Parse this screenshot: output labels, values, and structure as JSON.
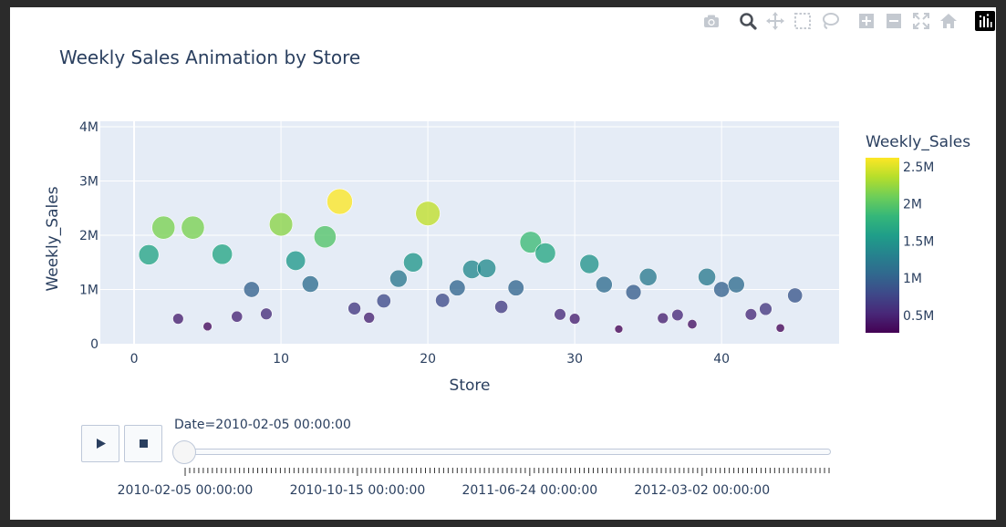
{
  "modebar": {
    "icons": [
      "camera-icon",
      "zoom-icon",
      "pan-icon",
      "box-select-icon",
      "lasso-icon",
      "zoom-in-icon",
      "zoom-out-icon",
      "autoscale-icon",
      "home-icon",
      "plotly-logo-icon"
    ]
  },
  "chart_data": {
    "type": "scatter",
    "title": "Weekly Sales Animation by Store",
    "xlabel": "Store",
    "ylabel": "Weekly_Sales",
    "xlim": [
      -2.3,
      48
    ],
    "ylim": [
      0,
      4100000
    ],
    "x_ticks": [
      0,
      10,
      20,
      30,
      40
    ],
    "y_ticks": [
      0,
      1000000,
      2000000,
      3000000,
      4000000
    ],
    "y_tick_labels": [
      "0",
      "1M",
      "2M",
      "3M",
      "4M"
    ],
    "grid": true,
    "size_encodes": "Weekly_Sales",
    "color_encodes": "Weekly_Sales",
    "colorscale": "Viridis",
    "colorbar": {
      "title": "Weekly_Sales",
      "range": [
        268000,
        2620000
      ],
      "ticks": [
        500000,
        1000000,
        1500000,
        2000000,
        2500000
      ],
      "tick_labels": [
        "0.5M",
        "1M",
        "1.5M",
        "2M",
        "2.5M"
      ]
    },
    "points": [
      {
        "x": 1,
        "y": 1640000
      },
      {
        "x": 2,
        "y": 2140000
      },
      {
        "x": 3,
        "y": 460000
      },
      {
        "x": 4,
        "y": 2140000
      },
      {
        "x": 5,
        "y": 320000
      },
      {
        "x": 6,
        "y": 1650000
      },
      {
        "x": 7,
        "y": 500000
      },
      {
        "x": 8,
        "y": 1000000
      },
      {
        "x": 9,
        "y": 550000
      },
      {
        "x": 10,
        "y": 2200000
      },
      {
        "x": 11,
        "y": 1530000
      },
      {
        "x": 12,
        "y": 1100000
      },
      {
        "x": 13,
        "y": 1970000
      },
      {
        "x": 14,
        "y": 2620000
      },
      {
        "x": 15,
        "y": 650000
      },
      {
        "x": 16,
        "y": 480000
      },
      {
        "x": 17,
        "y": 790000
      },
      {
        "x": 18,
        "y": 1200000
      },
      {
        "x": 19,
        "y": 1500000
      },
      {
        "x": 20,
        "y": 2400000
      },
      {
        "x": 21,
        "y": 800000
      },
      {
        "x": 22,
        "y": 1030000
      },
      {
        "x": 23,
        "y": 1370000
      },
      {
        "x": 24,
        "y": 1390000
      },
      {
        "x": 25,
        "y": 680000
      },
      {
        "x": 26,
        "y": 1030000
      },
      {
        "x": 27,
        "y": 1870000
      },
      {
        "x": 28,
        "y": 1670000
      },
      {
        "x": 29,
        "y": 540000
      },
      {
        "x": 30,
        "y": 460000
      },
      {
        "x": 31,
        "y": 1470000
      },
      {
        "x": 32,
        "y": 1090000
      },
      {
        "x": 33,
        "y": 270000
      },
      {
        "x": 34,
        "y": 950000
      },
      {
        "x": 35,
        "y": 1230000
      },
      {
        "x": 36,
        "y": 470000
      },
      {
        "x": 37,
        "y": 530000
      },
      {
        "x": 38,
        "y": 360000
      },
      {
        "x": 39,
        "y": 1230000
      },
      {
        "x": 40,
        "y": 1000000
      },
      {
        "x": 41,
        "y": 1090000
      },
      {
        "x": 42,
        "y": 540000
      },
      {
        "x": 43,
        "y": 640000
      },
      {
        "x": 44,
        "y": 290000
      },
      {
        "x": 45,
        "y": 890000
      }
    ]
  },
  "animation": {
    "play_icon": "play-icon",
    "stop_icon": "stop-icon",
    "current_label": "Date=2010-02-05 00:00:00",
    "tick_labels": [
      "2010-02-05 00:00:00",
      "2010-10-15 00:00:00",
      "2011-06-24 00:00:00",
      "2012-03-02 00:00:00"
    ],
    "frame_count": 143,
    "current_frame": 0
  }
}
